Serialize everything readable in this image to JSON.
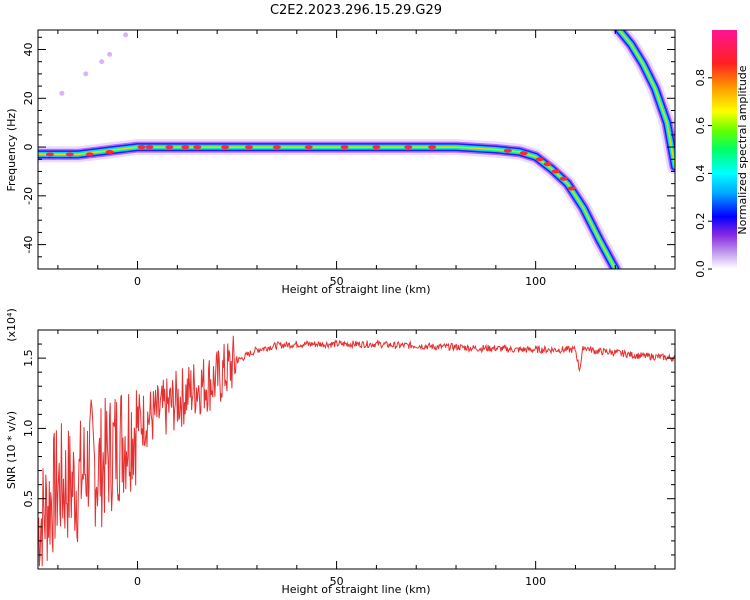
{
  "title": "C2E2.2023.296.15.29.G29",
  "chart_data": [
    {
      "type": "heatmap",
      "xlabel": "Height of straight line (km)",
      "ylabel": "Frequency (Hz)",
      "xlim": [
        -25,
        135
      ],
      "ylim": [
        -50,
        48
      ],
      "xticks": [
        0,
        50,
        100
      ],
      "yticks": [
        -40,
        -20,
        0,
        20,
        40
      ],
      "colorbar": {
        "label": "Normalized spectral amplitude",
        "range": [
          0,
          1
        ],
        "ticks": [
          "0.0",
          "0.2",
          "0.4",
          "0.6",
          "0.8"
        ]
      },
      "traces": [
        {
          "name": "main",
          "points": [
            [
              -25,
              -3
            ],
            [
              -15,
              -3
            ],
            [
              -5,
              -1
            ],
            [
              0,
              0
            ],
            [
              20,
              0
            ],
            [
              50,
              0
            ],
            [
              80,
              0
            ],
            [
              90,
              -1
            ],
            [
              96,
              -2
            ],
            [
              100,
              -4
            ],
            [
              104,
              -9
            ],
            [
              108,
              -15
            ],
            [
              112,
              -25
            ],
            [
              116,
              -38
            ],
            [
              120,
              -50
            ]
          ]
        },
        {
          "name": "aliased",
          "points": [
            [
              121,
              48
            ],
            [
              124,
              42
            ],
            [
              127,
              34
            ],
            [
              130,
              24
            ],
            [
              133,
              10
            ],
            [
              135,
              -8
            ]
          ]
        }
      ],
      "scatter_points": [
        [
          -19,
          22
        ],
        [
          -13,
          30
        ],
        [
          -9,
          35
        ],
        [
          -7,
          38
        ],
        [
          -3,
          46
        ]
      ]
    },
    {
      "type": "line",
      "xlabel": "Height of straight line (km)",
      "ylabel": "SNR (10 * v/v)",
      "y_multiplier": "(x10⁴)",
      "xlim": [
        -25,
        135
      ],
      "ylim": [
        0,
        1.7
      ],
      "xticks": [
        0,
        50,
        100
      ],
      "yticks": [
        "0.5",
        "1.0",
        "1.5"
      ],
      "color": "#e53030",
      "series": [
        {
          "x": [
            -25,
            -20,
            -15,
            -12,
            -10,
            -5,
            0,
            5,
            10,
            15,
            20,
            25,
            30,
            35,
            40,
            45,
            50,
            55,
            60,
            65,
            70,
            75,
            80,
            85,
            90,
            95,
            100,
            105,
            110,
            111,
            112,
            115,
            120,
            125,
            130,
            135
          ],
          "y": [
            0.3,
            0.6,
            0.6,
            0.8,
            0.7,
            0.9,
            1.05,
            1.1,
            1.2,
            1.3,
            1.35,
            1.48,
            1.56,
            1.59,
            1.6,
            1.6,
            1.6,
            1.6,
            1.6,
            1.59,
            1.59,
            1.58,
            1.58,
            1.57,
            1.57,
            1.56,
            1.56,
            1.56,
            1.56,
            1.42,
            1.58,
            1.55,
            1.54,
            1.52,
            1.51,
            1.5
          ]
        }
      ]
    }
  ]
}
